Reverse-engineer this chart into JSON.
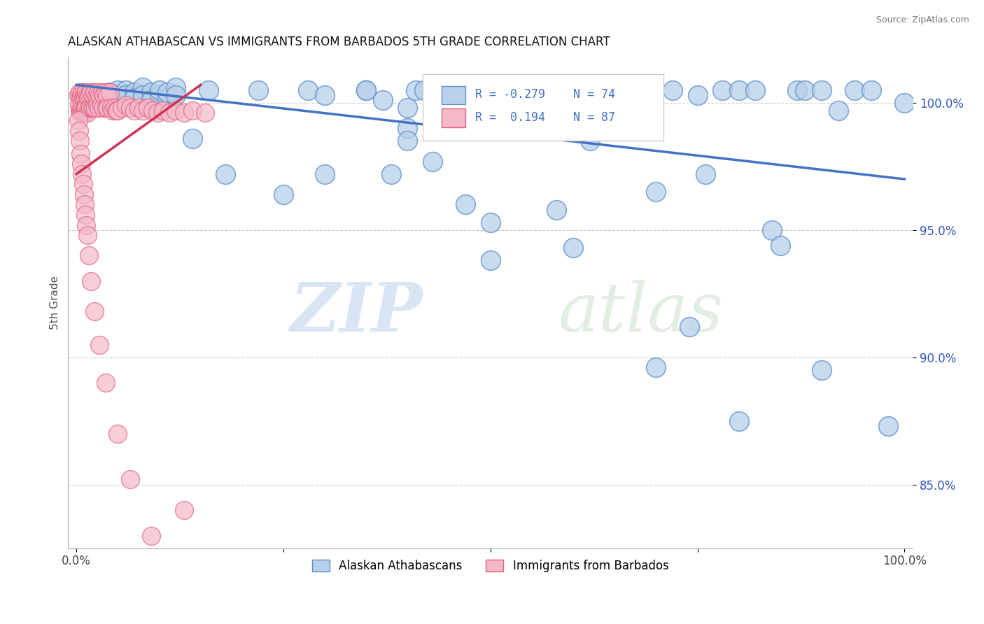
{
  "title": "ALASKAN ATHABASCAN VS IMMIGRANTS FROM BARBADOS 5TH GRADE CORRELATION CHART",
  "source": "Source: ZipAtlas.com",
  "ylabel": "5th Grade",
  "xlabel": "",
  "xlim": [
    -0.01,
    1.01
  ],
  "ylim": [
    0.825,
    1.018
  ],
  "yticks": [
    0.85,
    0.9,
    0.95,
    1.0
  ],
  "ytick_labels": [
    "85.0%",
    "90.0%",
    "95.0%",
    "100.0%"
  ],
  "xticks": [
    0.0,
    0.25,
    0.5,
    0.75,
    1.0
  ],
  "xtick_labels": [
    "0.0%",
    "",
    "",
    "",
    "100.0%"
  ],
  "blue_R": -0.279,
  "blue_N": 74,
  "pink_R": 0.194,
  "pink_N": 87,
  "blue_color": "#b8d0ea",
  "pink_color": "#f5b8c8",
  "blue_edge_color": "#6090c8",
  "pink_edge_color": "#e06080",
  "blue_line_color": "#4472c4",
  "pink_line_color": "#cc3355",
  "legend_label_blue": "Alaskan Athabascans",
  "legend_label_pink": "Immigrants from Barbados",
  "watermark_zip": "ZIP",
  "watermark_atlas": "atlas",
  "blue_line_x0": 0.0,
  "blue_line_y0": 1.007,
  "blue_line_x1": 1.0,
  "blue_line_y1": 0.97,
  "pink_line_x0": 0.0,
  "pink_line_y0": 0.972,
  "pink_line_x1": 0.15,
  "pink_line_y1": 1.007,
  "blue_x": [
    0.02,
    0.04,
    0.04,
    0.05,
    0.05,
    0.06,
    0.06,
    0.07,
    0.07,
    0.08,
    0.08,
    0.09,
    0.09,
    0.1,
    0.1,
    0.11,
    0.11,
    0.12,
    0.12,
    0.14,
    0.16,
    0.18,
    0.22,
    0.25,
    0.28,
    0.3,
    0.35,
    0.37,
    0.38,
    0.4,
    0.4,
    0.41,
    0.42,
    0.43,
    0.45,
    0.46,
    0.47,
    0.48,
    0.5,
    0.52,
    0.55,
    0.55,
    0.58,
    0.6,
    0.62,
    0.65,
    0.67,
    0.68,
    0.7,
    0.72,
    0.74,
    0.75,
    0.76,
    0.78,
    0.8,
    0.82,
    0.84,
    0.85,
    0.87,
    0.88,
    0.9,
    0.92,
    0.94,
    0.96,
    0.98,
    1.0,
    0.3,
    0.35,
    0.4,
    0.5,
    0.6,
    0.7,
    0.8,
    0.9
  ],
  "blue_y": [
    1.003,
    1.004,
    1.002,
    1.005,
    1.003,
    1.005,
    1.003,
    1.004,
    1.002,
    1.006,
    1.003,
    1.004,
    1.001,
    1.003,
    1.005,
    1.002,
    1.004,
    1.006,
    1.003,
    0.986,
    1.005,
    0.972,
    1.005,
    0.964,
    1.005,
    1.003,
    1.005,
    1.001,
    0.972,
    0.99,
    0.998,
    1.005,
    1.005,
    0.977,
    1.005,
    1.003,
    0.96,
    1.001,
    0.953,
    0.996,
    1.005,
    1.003,
    0.958,
    1.005,
    0.985,
    1.005,
    1.002,
    1.005,
    0.965,
    1.005,
    0.912,
    1.003,
    0.972,
    1.005,
    1.005,
    1.005,
    0.95,
    0.944,
    1.005,
    1.005,
    1.005,
    0.997,
    1.005,
    1.005,
    0.873,
    1.0,
    0.972,
    1.005,
    0.985,
    0.938,
    0.943,
    0.896,
    0.875,
    0.895
  ],
  "pink_x": [
    0.002,
    0.003,
    0.004,
    0.004,
    0.005,
    0.005,
    0.006,
    0.006,
    0.007,
    0.007,
    0.008,
    0.008,
    0.009,
    0.009,
    0.01,
    0.01,
    0.011,
    0.011,
    0.012,
    0.012,
    0.013,
    0.013,
    0.014,
    0.015,
    0.016,
    0.017,
    0.018,
    0.019,
    0.02,
    0.021,
    0.022,
    0.023,
    0.024,
    0.025,
    0.026,
    0.027,
    0.028,
    0.03,
    0.031,
    0.032,
    0.033,
    0.035,
    0.036,
    0.037,
    0.038,
    0.04,
    0.042,
    0.044,
    0.046,
    0.048,
    0.05,
    0.055,
    0.06,
    0.065,
    0.07,
    0.075,
    0.08,
    0.086,
    0.092,
    0.098,
    0.105,
    0.112,
    0.12,
    0.13,
    0.14,
    0.155,
    0.002,
    0.003,
    0.004,
    0.005,
    0.006,
    0.007,
    0.008,
    0.009,
    0.01,
    0.011,
    0.012,
    0.013,
    0.015,
    0.018,
    0.022,
    0.028,
    0.035,
    0.05,
    0.065,
    0.09,
    0.13
  ],
  "pink_y": [
    1.003,
    0.999,
    1.004,
    0.997,
    1.002,
    0.996,
    1.003,
    0.997,
    1.004,
    0.998,
    1.002,
    0.997,
    1.004,
    0.998,
    1.003,
    0.996,
    1.002,
    0.998,
    1.004,
    0.998,
    1.003,
    0.996,
    1.002,
    0.998,
    1.003,
    0.998,
    1.004,
    0.998,
    1.003,
    0.998,
    1.004,
    0.998,
    1.003,
    0.999,
    1.004,
    0.998,
    1.003,
    0.999,
    1.004,
    0.998,
    1.003,
    1.004,
    0.998,
    1.003,
    0.998,
    1.004,
    0.998,
    0.997,
    0.998,
    0.997,
    0.997,
    0.998,
    0.999,
    0.998,
    0.997,
    0.998,
    0.997,
    0.998,
    0.997,
    0.996,
    0.997,
    0.996,
    0.997,
    0.996,
    0.997,
    0.996,
    0.993,
    0.989,
    0.985,
    0.98,
    0.976,
    0.972,
    0.968,
    0.964,
    0.96,
    0.956,
    0.952,
    0.948,
    0.94,
    0.93,
    0.918,
    0.905,
    0.89,
    0.87,
    0.852,
    0.83,
    0.84
  ]
}
